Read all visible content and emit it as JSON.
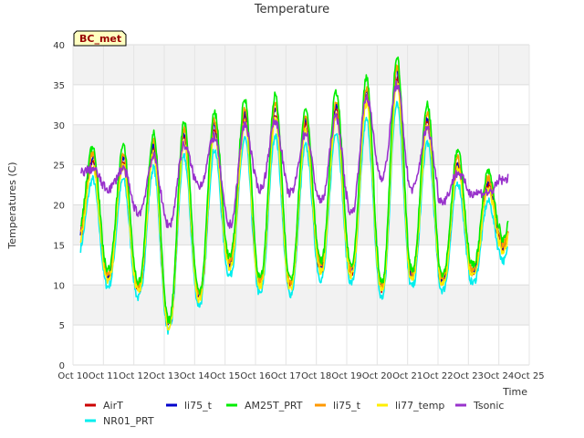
{
  "chart_data": {
    "type": "line",
    "title": "Temperature",
    "xlabel": "Time",
    "ylabel": "Temperatures (C)",
    "badge": "BC_met",
    "xlim": [
      10,
      25
    ],
    "ylim": [
      0,
      40
    ],
    "grid": true,
    "legend_position": "bottom",
    "x_ticks": [
      {
        "v": 10,
        "label": "Oct 10"
      },
      {
        "v": 11,
        "label": "Oct 11"
      },
      {
        "v": 12,
        "label": "Oct 12"
      },
      {
        "v": 13,
        "label": "Oct 13"
      },
      {
        "v": 14,
        "label": "Oct 14"
      },
      {
        "v": 15,
        "label": "Oct 15"
      },
      {
        "v": 16,
        "label": "Oct 16"
      },
      {
        "v": 17,
        "label": "Oct 17"
      },
      {
        "v": 18,
        "label": "Oct 18"
      },
      {
        "v": 19,
        "label": "Oct 19"
      },
      {
        "v": 20,
        "label": "Oct 20"
      },
      {
        "v": 21,
        "label": "Oct 21"
      },
      {
        "v": 22,
        "label": "Oct 22"
      },
      {
        "v": 23,
        "label": "Oct 23"
      },
      {
        "v": 24,
        "label": "Oct 24"
      },
      {
        "v": 25,
        "label": "Oct 25"
      }
    ],
    "y_ticks": [
      0,
      5,
      10,
      15,
      20,
      25,
      30,
      35,
      40
    ],
    "x_data_range": [
      10.25,
      24.3
    ],
    "base": {
      "min": [
        15.5,
        11.0,
        9.5,
        5.0,
        8.5,
        12.5,
        10.0,
        10.0,
        12.0,
        11.5,
        9.5,
        11.0,
        10.5,
        11.5,
        14.5
      ],
      "max": [
        25.5,
        25.5,
        27.0,
        28.5,
        29.5,
        31.0,
        31.5,
        30.0,
        32.0,
        33.5,
        36.0,
        30.5,
        25.0,
        22.5,
        28.0
      ]
    },
    "series": [
      {
        "name": "AirT",
        "color": "#cc0000",
        "offset": 0.0
      },
      {
        "name": "li75_t",
        "color": "#0000cc",
        "offset": 0.3
      },
      {
        "name": "AM25T_PRT",
        "color": "#00ee00",
        "offset": 1.2
      },
      {
        "name": "li75_t",
        "color": "#ff9900",
        "offset": 0.6
      },
      {
        "name": "li77_temp",
        "color": "#ffee00",
        "offset": -0.4
      },
      {
        "name": "Tsonic",
        "color": "#9933cc",
        "offset": 0.0
      },
      {
        "name": "NR01_PRT",
        "color": "#00eeee",
        "offset": -1.5
      }
    ],
    "tsonic_min": [
      24.0,
      22.0,
      19.0,
      17.5,
      22.5,
      17.5,
      22.0,
      21.5,
      20.5,
      19.0,
      23.5,
      22.0,
      20.5,
      21.5,
      23.0
    ]
  }
}
